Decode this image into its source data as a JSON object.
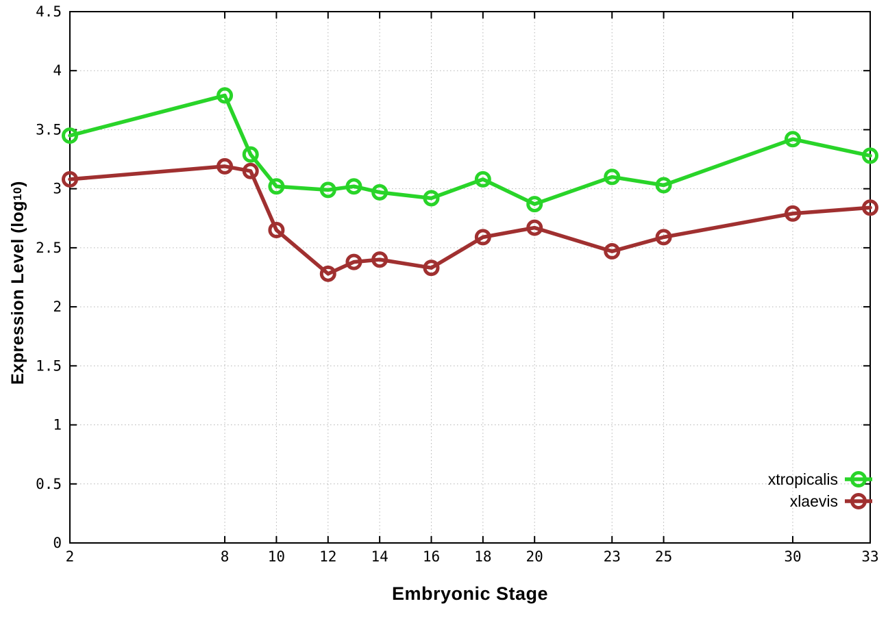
{
  "labels": {
    "x": "Embryonic Stage",
    "y_prefix": "Expression Level (log",
    "y_sub": "10",
    "y_suffix": ")"
  },
  "legend": {
    "position": "bottom-right",
    "entries": [
      "xtropicalis",
      "xlaevis"
    ]
  },
  "chart_data": {
    "type": "line",
    "title": "",
    "xlabel": "Embryonic Stage",
    "ylabel": "Expression Level (log10)",
    "x": [
      2,
      8,
      9,
      10,
      12,
      13,
      14,
      16,
      18,
      20,
      23,
      25,
      30,
      33
    ],
    "x_tick_values": [
      2,
      8,
      10,
      12,
      14,
      16,
      18,
      20,
      23,
      25,
      30,
      33
    ],
    "x_tick_labels": [
      "2",
      "8",
      "10",
      "12",
      "14",
      "16",
      "18",
      "20",
      "23",
      "25",
      "30",
      "33"
    ],
    "y_tick_values": [
      0,
      0.5,
      1,
      1.5,
      2,
      2.5,
      3,
      3.5,
      4,
      4.5
    ],
    "y_tick_labels": [
      "0",
      "0.5",
      "1",
      "1.5",
      "2",
      "2.5",
      "3",
      "3.5",
      "4",
      "4.5"
    ],
    "xlim": [
      2,
      33
    ],
    "ylim": [
      0,
      4.5
    ],
    "grid": true,
    "legend_position": "bottom-right",
    "series": [
      {
        "name": "xtropicalis",
        "color": "#29d429",
        "marker": "open-circle",
        "values": [
          3.45,
          3.79,
          3.29,
          3.02,
          2.99,
          3.02,
          2.97,
          2.92,
          3.08,
          2.87,
          3.1,
          3.03,
          3.42,
          3.28
        ]
      },
      {
        "name": "xlaevis",
        "color": "#a03030",
        "marker": "open-circle",
        "values": [
          3.08,
          3.19,
          3.15,
          2.65,
          2.28,
          2.38,
          2.4,
          2.33,
          2.59,
          2.67,
          2.47,
          2.59,
          2.79,
          2.84
        ]
      }
    ],
    "style": {
      "grid_color": "#b4b4b4",
      "axis_color": "#000000",
      "line_width": 5.5,
      "marker_radius": 9.5,
      "marker_stroke": 5
    }
  }
}
